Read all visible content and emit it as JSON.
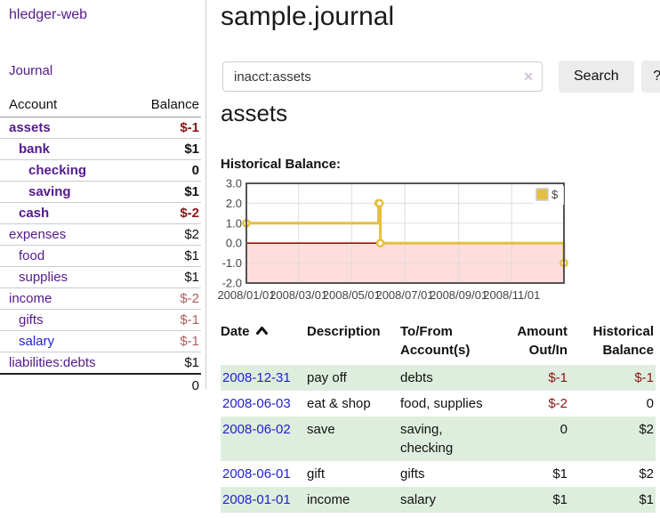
{
  "app": {
    "brand": "hledger-web"
  },
  "sidebar": {
    "nav_journal": "Journal",
    "table_headers": {
      "account": "Account",
      "balance": "Balance"
    },
    "accounts": [
      {
        "name": "assets",
        "level": 1,
        "bold": true,
        "balance": "$-1",
        "balance_class": "neg-strong",
        "visited": true
      },
      {
        "name": "bank",
        "level": 2,
        "bold": true,
        "balance": "$1",
        "balance_class": "",
        "visited": true
      },
      {
        "name": "checking",
        "level": 3,
        "bold": true,
        "balance": "0",
        "balance_class": "",
        "visited": true
      },
      {
        "name": "saving",
        "level": 3,
        "bold": true,
        "balance": "$1",
        "balance_class": "",
        "visited": true
      },
      {
        "name": "cash",
        "level": 2,
        "bold": true,
        "balance": "$-2",
        "balance_class": "neg-strong",
        "visited": true
      },
      {
        "name": "expenses",
        "level": 1,
        "bold": false,
        "balance": "$2",
        "balance_class": "",
        "visited": true
      },
      {
        "name": "food",
        "level": 2,
        "bold": false,
        "balance": "$1",
        "balance_class": "",
        "visited": true
      },
      {
        "name": "supplies",
        "level": 2,
        "bold": false,
        "balance": "$1",
        "balance_class": "",
        "visited": true
      },
      {
        "name": "income",
        "level": 1,
        "bold": false,
        "balance": "$-2",
        "balance_class": "neg-soft",
        "visited": true
      },
      {
        "name": "gifts",
        "level": 2,
        "bold": false,
        "balance": "$-1",
        "balance_class": "neg-soft",
        "visited": true
      },
      {
        "name": "salary",
        "level": 2,
        "bold": false,
        "balance": "$-1",
        "balance_class": "neg-soft",
        "visited": false
      },
      {
        "name": "liabilities:debts",
        "level": 1,
        "bold": false,
        "balance": "$1",
        "balance_class": "",
        "visited": true
      }
    ],
    "total": "0"
  },
  "header": {
    "title": "sample.journal"
  },
  "search": {
    "value": "inacct:assets",
    "clear_icon": "✕",
    "button_label": "Search",
    "help_label": "?"
  },
  "account_page": {
    "heading": "assets",
    "chart_label": "Historical Balance:"
  },
  "chart_data": {
    "type": "line",
    "step": true,
    "title": "Historical Balance",
    "series": [
      {
        "name": "$",
        "color": "#e6be3e",
        "points": [
          [
            "2008-01-01",
            1
          ],
          [
            "2008-06-01",
            2
          ],
          [
            "2008-06-02",
            2
          ],
          [
            "2008-06-03",
            0
          ],
          [
            "2008-12-31",
            -1
          ]
        ]
      }
    ],
    "x_range": [
      "2008-01-01",
      "2008-12-31"
    ],
    "ylim": [
      -2,
      3
    ],
    "ytick_labels": [
      "3.0",
      "2.0",
      "1.0",
      "0.0",
      "-1.0",
      "-2.0"
    ],
    "yticks": [
      3,
      2,
      1,
      0,
      -1,
      -2
    ],
    "xticks": [
      "2008-01-01",
      "2008-03-01",
      "2008-05-01",
      "2008-07-01",
      "2008-09-01",
      "2008-11-01"
    ],
    "xtick_labels": [
      "2008/01/01",
      "2008/03/01",
      "2008/05/01",
      "2008/07/01",
      "2008/09/01",
      "2008/11/01"
    ],
    "legend": {
      "label": "$",
      "position": "top-right"
    },
    "grid": true,
    "markings": {
      "below_zero_fill": "#ffdddd",
      "zero_line_color": "#bb0000",
      "border_color": "#545454",
      "grid_color": "#dddddd"
    }
  },
  "register": {
    "headers": {
      "date": "Date",
      "description": "Description",
      "accounts": "To/From Account(s)",
      "amount": "Amount Out/In",
      "balance": "Historical Balance"
    },
    "sort": {
      "column": "date",
      "direction": "ascending",
      "icon": "chevron-up"
    },
    "rows": [
      {
        "date": "2008-12-31",
        "description": "pay off",
        "accounts": "debts",
        "amount": "$-1",
        "amount_class": "neg-strong",
        "balance": "$-1",
        "balance_class": "neg-strong"
      },
      {
        "date": "2008-06-03",
        "description": "eat & shop",
        "accounts": "food, supplies",
        "amount": "$-2",
        "amount_class": "neg-strong",
        "balance": "0",
        "balance_class": ""
      },
      {
        "date": "2008-06-02",
        "description": "save",
        "accounts": "saving, checking",
        "amount": "0",
        "amount_class": "",
        "balance": "$2",
        "balance_class": ""
      },
      {
        "date": "2008-06-01",
        "description": "gift",
        "accounts": "gifts",
        "amount": "$1",
        "amount_class": "",
        "balance": "$2",
        "balance_class": ""
      },
      {
        "date": "2008-01-01",
        "description": "income",
        "accounts": "salary",
        "amount": "$1",
        "amount_class": "",
        "balance": "$1",
        "balance_class": ""
      }
    ]
  },
  "colors": {
    "link_visited": "#551a8b",
    "link_new": "#2222cc",
    "negative_strong": "#8b1414",
    "negative_soft": "#b05c5c",
    "row_green": "#deeede",
    "series_gold": "#e6be3e",
    "below_zero_pink": "#ffdddd",
    "zero_line_red": "#bb0000"
  }
}
